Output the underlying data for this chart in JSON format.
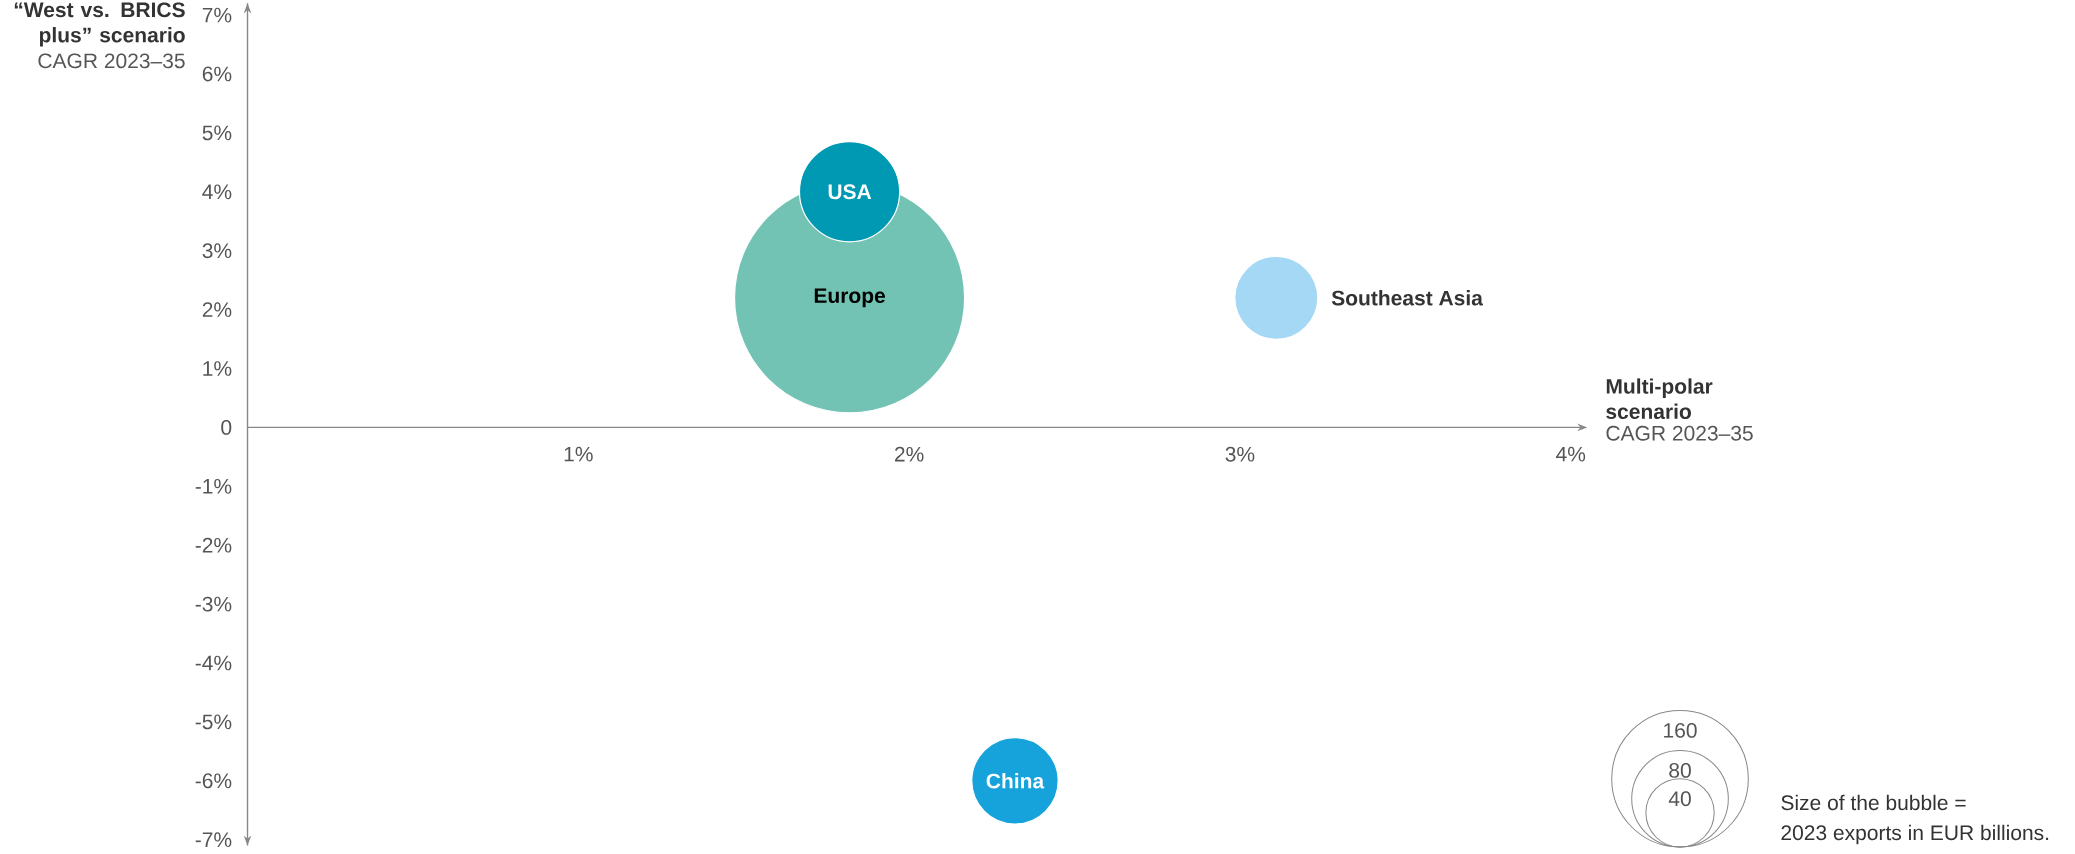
{
  "chart_data": {
    "type": "bubble",
    "xlabel": "Multi-polar scenario",
    "ylabel": "“West vs. BRICS plus” scenario",
    "annotations": [
      "CAGR 2023–35",
      "CAGR 2023–35",
      "Size of the bubble =",
      "2023 exports in EUR billions."
    ],
    "xlim": [
      0,
      4.05
    ],
    "ylim": [
      -7.1,
      7.2
    ],
    "xticks": [
      {
        "value": 1,
        "label": "1%"
      },
      {
        "value": 2,
        "label": "2%"
      },
      {
        "value": 3,
        "label": "3%"
      },
      {
        "value": 4,
        "label": "4%"
      }
    ],
    "yticks": [
      {
        "value": -7,
        "label": "-7%"
      },
      {
        "value": -6,
        "label": "-6%"
      },
      {
        "value": -5,
        "label": "-5%"
      },
      {
        "value": -4,
        "label": "-4%"
      },
      {
        "value": -3,
        "label": "-3%"
      },
      {
        "value": -2,
        "label": "-2%"
      },
      {
        "value": -1,
        "label": "-1%"
      },
      0,
      {
        "value": 1,
        "label": "1%"
      },
      {
        "value": 2,
        "label": "2%"
      },
      {
        "value": 3,
        "label": "3%"
      },
      {
        "value": 4,
        "label": "4%"
      },
      {
        "value": 5,
        "label": "5%"
      },
      {
        "value": 6,
        "label": "6%"
      },
      {
        "value": 7,
        "label": "7%"
      }
    ],
    "size_legend": [
      160,
      80,
      40
    ],
    "series": [
      {
        "name": "Europe",
        "color": "#72c3b4",
        "x": [
          1.82
        ],
        "values": [
          2.2
        ],
        "sizes": [
          454
        ]
      },
      {
        "name": "USA",
        "color": "#0099b3",
        "x": [
          1.82
        ],
        "values": [
          4.0
        ],
        "sizes": [
          86
        ]
      },
      {
        "name": "Southeast Asia",
        "color": "#a5d8f5",
        "x": [
          3.11
        ],
        "values": [
          2.2
        ],
        "sizes": [
          59
        ]
      },
      {
        "name": "China",
        "color": "#16a3db",
        "x": [
          2.32
        ],
        "values": [
          -6.0
        ],
        "sizes": [
          64
        ]
      }
    ]
  }
}
